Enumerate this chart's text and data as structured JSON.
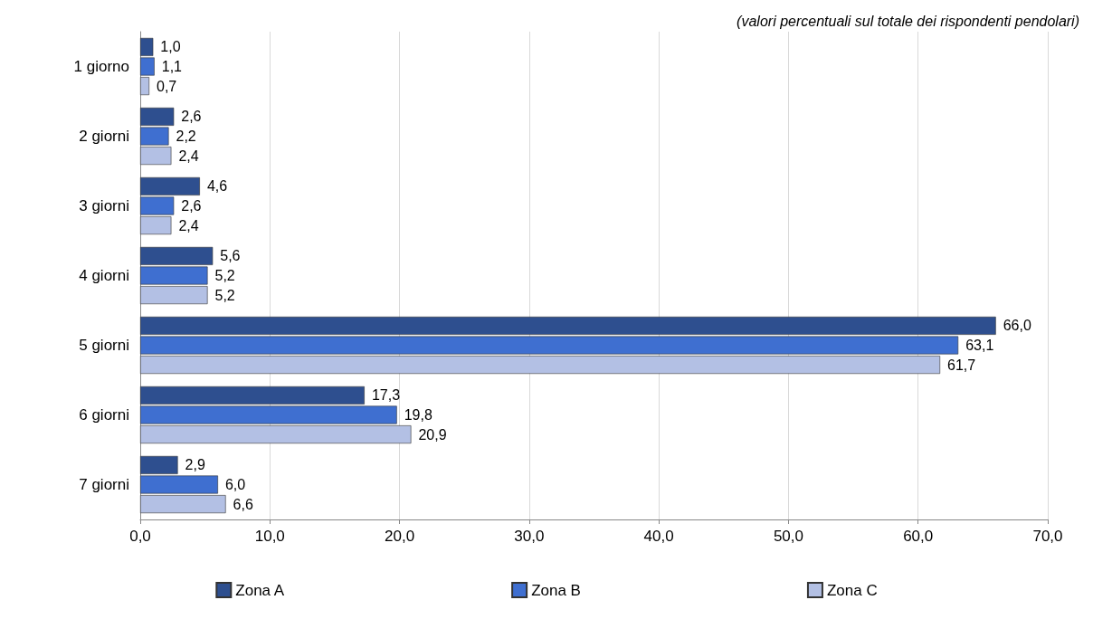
{
  "chart_data": {
    "type": "bar",
    "orientation": "horizontal",
    "subtitle": "(valori percentuali sul totale dei rispondenti pendolari)",
    "categories": [
      "1 giorno",
      "2 giorni",
      "3 giorni",
      "4 giorni",
      "5 giorni",
      "6 giorni",
      "7 giorni"
    ],
    "series": [
      {
        "name": "Zona A",
        "color": "#2e4f8f",
        "values": [
          1.0,
          2.6,
          4.6,
          5.6,
          66.0,
          17.3,
          2.9
        ],
        "value_labels": [
          "1,0",
          "2,6",
          "4,6",
          "5,6",
          "66,0",
          "17,3",
          "2,9"
        ]
      },
      {
        "name": "Zona B",
        "color": "#3f6fd0",
        "values": [
          1.1,
          2.2,
          2.6,
          5.2,
          63.1,
          19.8,
          6.0
        ],
        "value_labels": [
          "1,1",
          "2,2",
          "2,6",
          "5,2",
          "63,1",
          "19,8",
          "6,0"
        ]
      },
      {
        "name": "Zona C",
        "color": "#b3c0e4",
        "values": [
          0.7,
          2.4,
          2.4,
          5.2,
          61.7,
          20.9,
          6.6
        ],
        "value_labels": [
          "0,7",
          "2,4",
          "2,4",
          "5,2",
          "61,7",
          "20,9",
          "6,6"
        ]
      }
    ],
    "xlim": [
      0,
      70
    ],
    "xticks": [
      {
        "value": 0,
        "label": "0,0"
      },
      {
        "value": 10,
        "label": "10,0"
      },
      {
        "value": 20,
        "label": "20,0"
      },
      {
        "value": 30,
        "label": "30,0"
      },
      {
        "value": 40,
        "label": "40,0"
      },
      {
        "value": 50,
        "label": "50,0"
      },
      {
        "value": 60,
        "label": "60,0"
      },
      {
        "value": 70,
        "label": "70,0"
      }
    ],
    "grid": "x",
    "legend": "bottom"
  }
}
